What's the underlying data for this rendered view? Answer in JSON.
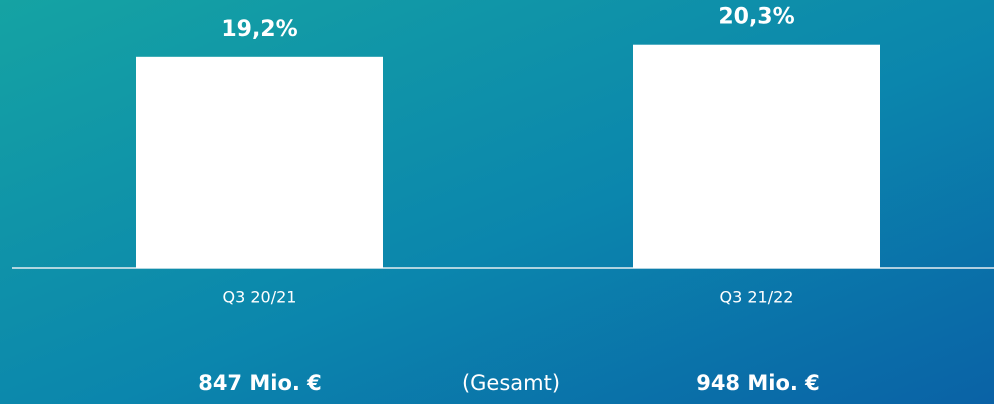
{
  "chart_data": {
    "type": "bar",
    "categories": [
      "Q3 20/21",
      "Q3 21/22"
    ],
    "values": [
      19.2,
      20.3
    ],
    "value_labels": [
      "19,2%",
      "20,3%"
    ],
    "color": "#ffffff",
    "annotations": [
      "847 Mio. €",
      "(Gesamt)",
      "948 Mio. €"
    ]
  }
}
